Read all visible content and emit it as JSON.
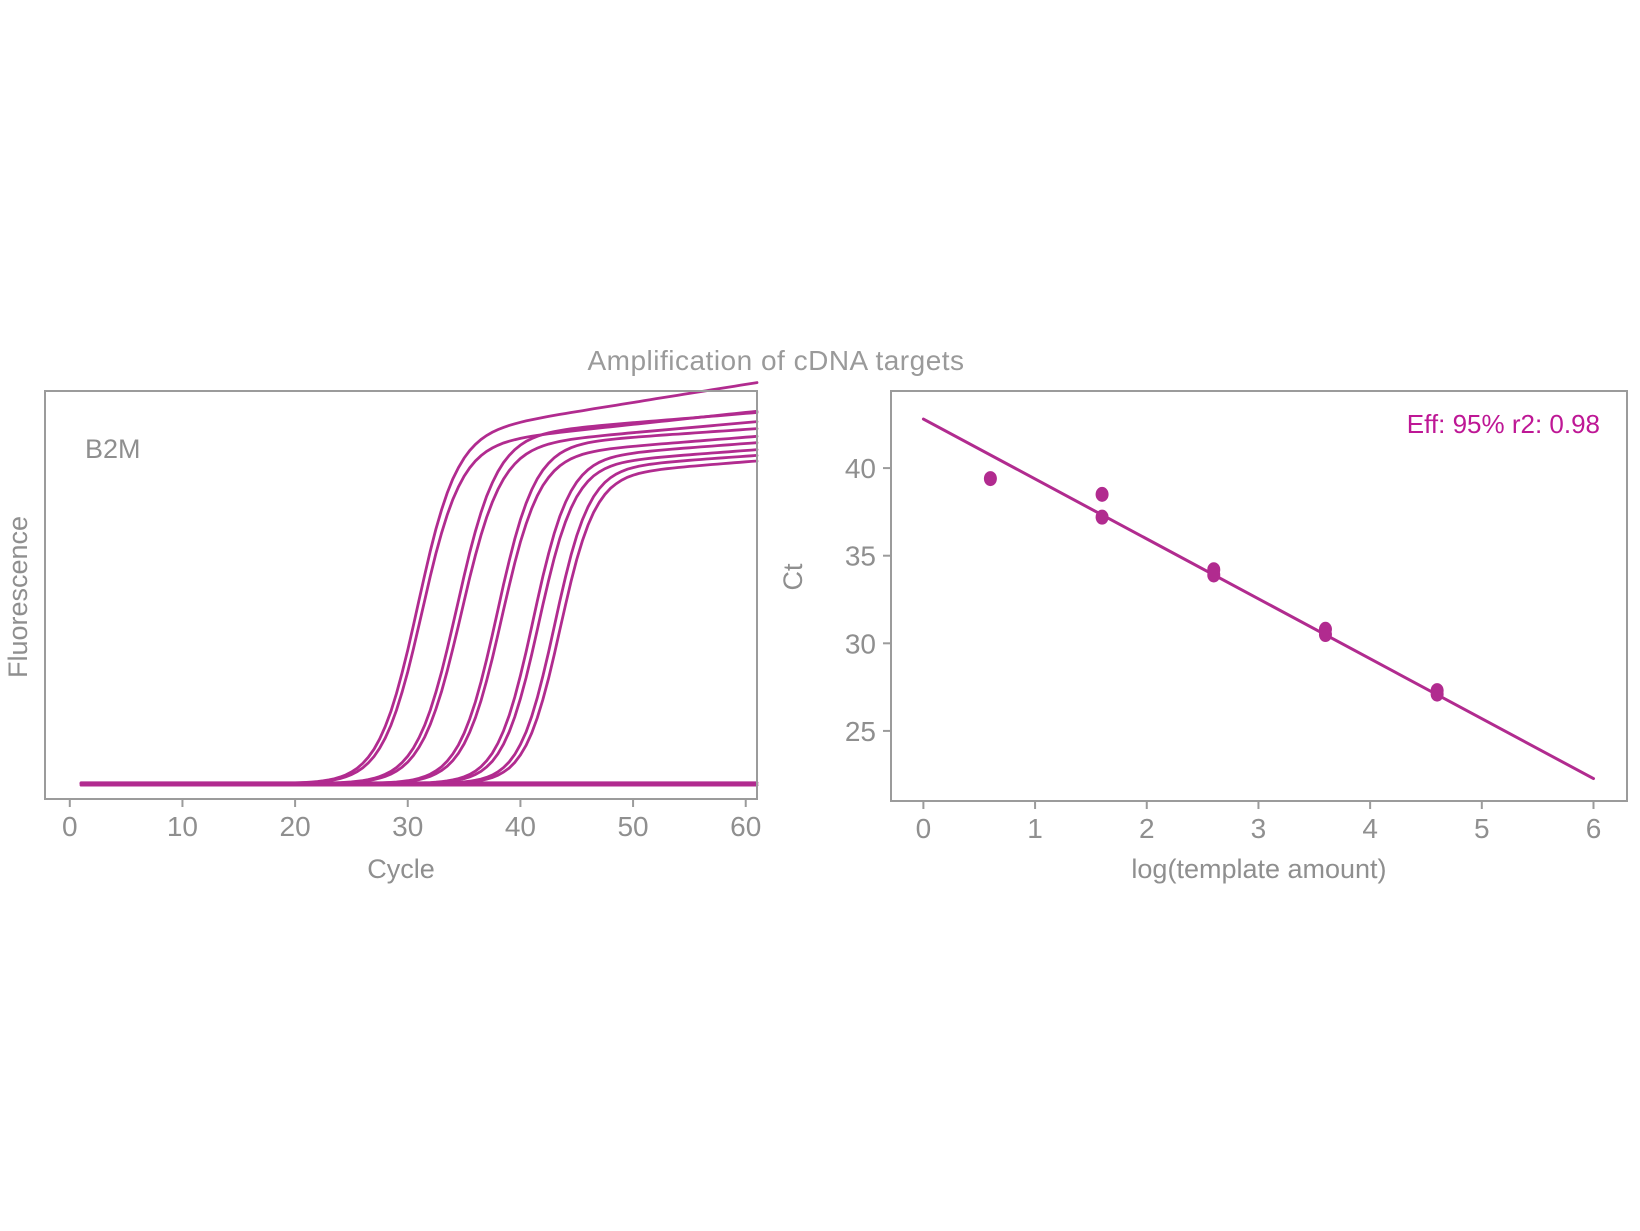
{
  "title": "Amplification of cDNA targets",
  "colors": {
    "accent": "#B12B8F",
    "annotation": "#BE1795",
    "frame": "#9B9B9B",
    "text": "#8F8F8F",
    "title_text": "#9A9A9A",
    "background": "#FFFFFF"
  },
  "chart_data": [
    {
      "type": "line",
      "id": "amplification-curves",
      "panel_label": "B2M",
      "xlabel": "Cycle",
      "ylabel": "Fluorescence",
      "x_ticks": [
        0,
        10,
        20,
        30,
        40,
        50,
        60
      ],
      "y_ticks": [],
      "xlim": [
        -2.2,
        61
      ],
      "ylim": [
        0,
        1.06
      ],
      "cycle_range": [
        1,
        61
      ],
      "baseline": 0.04,
      "grid": false,
      "curves": [
        {
          "midpoint": 30.8,
          "steepness": 0.58,
          "plateau": 0.9,
          "drift": 0.0047
        },
        {
          "midpoint": 31.2,
          "steepness": 0.58,
          "plateau": 0.875,
          "drift": 0.0031
        },
        {
          "midpoint": 34.3,
          "steepness": 0.57,
          "plateau": 0.9,
          "drift": 0.0024
        },
        {
          "midpoint": 34.7,
          "steepness": 0.57,
          "plateau": 0.872,
          "drift": 0.0026
        },
        {
          "midpoint": 37.9,
          "steepness": 0.6,
          "plateau": 0.876,
          "drift": 0.002
        },
        {
          "midpoint": 38.3,
          "steepness": 0.6,
          "plateau": 0.85,
          "drift": 0.0023
        },
        {
          "midpoint": 41.1,
          "steepness": 0.63,
          "plateau": 0.842,
          "drift": 0.0022
        },
        {
          "midpoint": 41.6,
          "steepness": 0.63,
          "plateau": 0.825,
          "drift": 0.0022
        },
        {
          "midpoint": 43.0,
          "steepness": 0.65,
          "plateau": 0.815,
          "drift": 0.0021
        },
        {
          "midpoint": 43.5,
          "steepness": 0.65,
          "plateau": 0.798,
          "drift": 0.0023
        }
      ],
      "ntc_flat_lines": [
        0.042,
        0.036
      ]
    },
    {
      "type": "scatter",
      "id": "standard-curve",
      "xlabel": "log(template amount)",
      "ylabel": "Ct",
      "annotation": "Eff: 95% r2: 0.98",
      "efficiency_percent": 95,
      "r_squared": 0.98,
      "x_ticks": [
        0,
        1,
        2,
        3,
        4,
        5,
        6
      ],
      "y_ticks": [
        25,
        30,
        35,
        40
      ],
      "xlim": [
        -0.29,
        6.3
      ],
      "ylim": [
        21,
        44.4
      ],
      "grid": false,
      "points": [
        {
          "x": 0.6,
          "y": 39.4
        },
        {
          "x": 1.6,
          "y": 38.5
        },
        {
          "x": 1.6,
          "y": 37.2
        },
        {
          "x": 2.6,
          "y": 34.2
        },
        {
          "x": 2.6,
          "y": 33.9
        },
        {
          "x": 3.6,
          "y": 30.8
        },
        {
          "x": 3.6,
          "y": 30.5
        },
        {
          "x": 4.6,
          "y": 27.3
        },
        {
          "x": 4.6,
          "y": 27.1
        }
      ],
      "fit_line": {
        "x_start": 0,
        "x_end": 6,
        "intercept": 42.8,
        "slope": -3.42
      }
    }
  ]
}
